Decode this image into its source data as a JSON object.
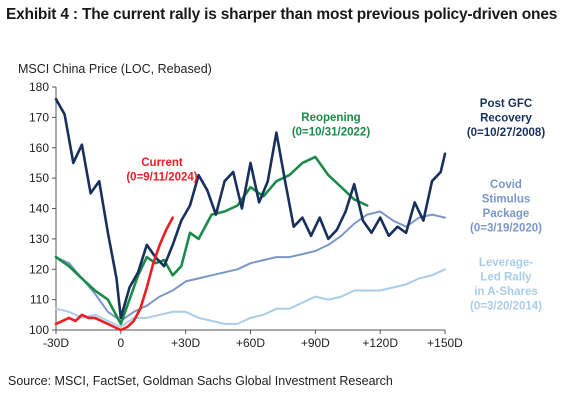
{
  "header": {
    "title": "Exhibit 4 : The current rally is sharper than most previous policy-driven ones"
  },
  "footer": {
    "source": "Source: MSCI, FactSet, Goldman Sachs Global Investment Research"
  },
  "chart_data": {
    "type": "line",
    "ylabel": "MSCI China Price (LOC, Rebased)",
    "xlabel": "",
    "xlim": [
      -30,
      150
    ],
    "ylim": [
      100,
      180
    ],
    "x_ticks": [
      -30,
      0,
      30,
      60,
      90,
      120,
      150
    ],
    "x_tick_labels": [
      "-30D",
      "0",
      "+30D",
      "+60D",
      "+90D",
      "+120D",
      "+150D"
    ],
    "y_ticks": [
      100,
      110,
      120,
      130,
      140,
      150,
      160,
      170,
      180
    ],
    "y_tick_labels": [
      "100",
      "110",
      "120",
      "130",
      "140",
      "150",
      "160",
      "170",
      "180"
    ],
    "grid": false,
    "series": [
      {
        "name": "Leverage-Led Rally in A-Shares (0=3/20/2014)",
        "label_lines": [
          "Leverage-",
          "Led Rally",
          "in A-Shares",
          "(0=3/20/2014)"
        ],
        "color": "#a9cde8",
        "x": [
          -30,
          -24,
          -18,
          -12,
          -6,
          0,
          6,
          12,
          18,
          24,
          30,
          36,
          42,
          48,
          54,
          60,
          66,
          72,
          78,
          84,
          90,
          96,
          102,
          108,
          114,
          120,
          126,
          132,
          138,
          144,
          150
        ],
        "y": [
          107,
          106,
          104,
          105,
          103,
          101,
          104,
          104,
          105,
          106,
          106,
          104,
          103,
          102,
          102,
          104,
          105,
          107,
          107,
          109,
          111,
          110,
          111,
          113,
          113,
          113,
          114,
          115,
          117,
          118,
          120
        ]
      },
      {
        "name": "Covid Stimulus Package (0=3/19/2020)",
        "label_lines": [
          "Covid",
          "Stimulus",
          "Package",
          "(0=3/19/2020)"
        ],
        "color": "#7b97c9",
        "x": [
          -30,
          -24,
          -18,
          -12,
          -6,
          0,
          6,
          12,
          18,
          24,
          30,
          36,
          42,
          48,
          54,
          60,
          66,
          72,
          78,
          84,
          90,
          96,
          102,
          108,
          114,
          120,
          126,
          132,
          138,
          144,
          150
        ],
        "y": [
          124,
          122,
          117,
          112,
          106,
          103,
          106,
          108,
          111,
          113,
          116,
          117,
          118,
          119,
          120,
          122,
          123,
          124,
          124,
          125,
          126,
          128,
          131,
          135,
          138,
          139,
          136,
          134,
          137,
          138,
          137
        ]
      },
      {
        "name": "Reopening (0=10/31/2022)",
        "label_lines": [
          "Reopening",
          "(0=10/31/2022)"
        ],
        "color": "#1b8a4a",
        "x": [
          -30,
          -24,
          -18,
          -12,
          -6,
          0,
          4,
          8,
          12,
          16,
          20,
          24,
          28,
          32,
          36,
          42,
          48,
          54,
          60,
          66,
          72,
          78,
          84,
          90,
          96,
          102,
          108,
          114
        ],
        "y": [
          124,
          121,
          117,
          113,
          110,
          102,
          110,
          118,
          124,
          122,
          123,
          118,
          121,
          132,
          130,
          138,
          139,
          141,
          147,
          144,
          149,
          151,
          155,
          157,
          151,
          147,
          143,
          141
        ]
      },
      {
        "name": "Post GFC Recovery (0=10/27/2008)",
        "label_lines": [
          "Post GFC",
          "Recovery",
          "(0=10/27/2008)"
        ],
        "color": "#17305c",
        "x": [
          -30,
          -26,
          -22,
          -18,
          -14,
          -10,
          -6,
          -2,
          0,
          4,
          8,
          12,
          16,
          20,
          24,
          28,
          32,
          36,
          40,
          44,
          48,
          52,
          56,
          60,
          64,
          68,
          72,
          76,
          80,
          84,
          88,
          92,
          96,
          100,
          104,
          108,
          112,
          116,
          120,
          124,
          128,
          132,
          136,
          140,
          144,
          148,
          150
        ],
        "y": [
          176,
          171,
          155,
          161,
          145,
          149,
          132,
          117,
          104,
          114,
          119,
          128,
          124,
          121,
          128,
          136,
          141,
          151,
          146,
          138,
          149,
          152,
          140,
          155,
          142,
          149,
          165,
          149,
          134,
          137,
          131,
          137,
          130,
          133,
          139,
          148,
          136,
          132,
          137,
          131,
          134,
          132,
          142,
          136,
          149,
          152,
          158
        ]
      },
      {
        "name": "Current (0=9/11/2024)",
        "label_lines": [
          "Current",
          "(0=9/11/2024)"
        ],
        "color": "#ef1c24",
        "x": [
          -30,
          -27,
          -24,
          -21,
          -18,
          -15,
          -12,
          -9,
          -6,
          -3,
          0,
          3,
          6,
          9,
          12,
          15,
          18,
          21,
          24
        ],
        "y": [
          102,
          103,
          104,
          103,
          105,
          104,
          104,
          103,
          102,
          101,
          100,
          101,
          103,
          107,
          114,
          122,
          128,
          133,
          137
        ]
      }
    ]
  }
}
